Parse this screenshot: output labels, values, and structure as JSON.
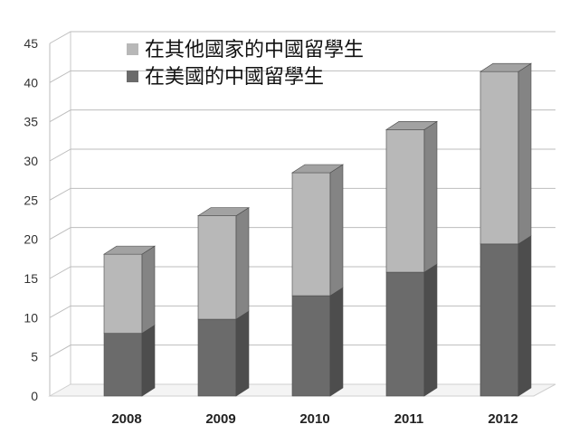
{
  "chart_data": {
    "type": "bar",
    "stacked": true,
    "three_d": true,
    "categories": [
      "2008",
      "2009",
      "2010",
      "2011",
      "2012"
    ],
    "series": [
      {
        "name": "在美國的中國留學生",
        "values": [
          8,
          9.8,
          12.8,
          15.8,
          19.4
        ],
        "color": "#6b6b6b"
      },
      {
        "name": "在其他國家的中國留學生",
        "values": [
          10.1,
          13.2,
          15.7,
          18.2,
          22
        ],
        "color": "#b8b8b8"
      }
    ],
    "yticks": [
      "0",
      "5",
      "10",
      "15",
      "20",
      "25",
      "30",
      "35",
      "40",
      "45"
    ],
    "ylim": [
      0,
      45
    ],
    "grid": true,
    "legend_position": "top-left"
  }
}
